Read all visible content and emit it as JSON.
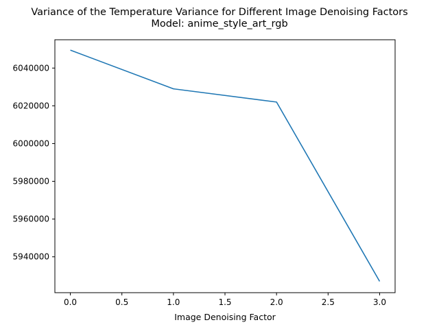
{
  "chart_data": {
    "type": "line",
    "title": "Variance of the Temperature Variance for Different Image Denoising Factors",
    "subtitle": "Model: anime_style_art_rgb",
    "xlabel": "Image Denoising Factor",
    "ylabel": "",
    "x": [
      0,
      1,
      2,
      3
    ],
    "series": [
      {
        "values": [
          6049500,
          6029000,
          6022000,
          5927000
        ],
        "color": "#1f77b4"
      }
    ],
    "xlim": [
      -0.15,
      3.15
    ],
    "ylim": [
      5921000,
      6055000
    ],
    "xticks": [
      0.0,
      0.5,
      1.0,
      1.5,
      2.0,
      2.5,
      3.0
    ],
    "xtick_labels": [
      "0.0",
      "0.5",
      "1.0",
      "1.5",
      "2.0",
      "2.5",
      "3.0"
    ],
    "yticks": [
      5940000,
      5960000,
      5980000,
      6000000,
      6020000,
      6040000
    ],
    "ytick_labels": [
      "5940000",
      "5960000",
      "5980000",
      "6000000",
      "6020000",
      "6040000"
    ],
    "grid": false,
    "legend": "none"
  }
}
